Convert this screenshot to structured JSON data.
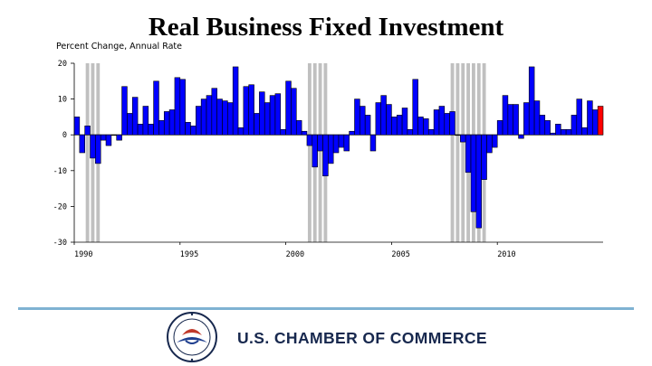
{
  "chart_data": {
    "type": "bar",
    "title": "Real Business Fixed Investment",
    "ylabel": "Percent Change, Annual Rate",
    "ylim": [
      -30,
      20
    ],
    "yticks": [
      "20",
      "10",
      "0",
      "-10",
      "-20",
      "-30"
    ],
    "xtick_labels": [
      "1990",
      "1995",
      "2000",
      "2005",
      "2010"
    ],
    "start": "1990 Q1",
    "frequency": "quarterly",
    "values": [
      5,
      -5,
      2.5,
      -6.5,
      -8,
      -1.5,
      -3,
      0,
      -1.5,
      13.5,
      6,
      10.5,
      3,
      8,
      3,
      15,
      4,
      6.5,
      7,
      16,
      15.5,
      3.5,
      2.5,
      8,
      10,
      11,
      13,
      10,
      9.5,
      9,
      19,
      2,
      13.5,
      14,
      6,
      12,
      9,
      11,
      11.5,
      1.5,
      15,
      13,
      4,
      1,
      -3,
      -9,
      -4.5,
      -11.5,
      -8,
      -5,
      -3.5,
      -4.5,
      1,
      10,
      8,
      5.5,
      -4.5,
      9,
      11,
      8.5,
      5,
      5.5,
      7.5,
      1.5,
      15.5,
      5,
      4.5,
      1.5,
      7,
      8,
      6,
      6.5,
      0,
      -2,
      -10.5,
      -21.5,
      -26,
      -12.5,
      -5,
      -3.5,
      4,
      11,
      8.5,
      8.5,
      -1,
      9,
      19,
      9.5,
      5.5,
      4,
      0.5,
      3,
      1.5,
      1.5,
      5.5,
      10,
      2,
      9.5,
      7,
      8
    ],
    "recessions": [
      {
        "start": "1990 Q3",
        "end": "1991 Q1"
      },
      {
        "start": "2001 Q1",
        "end": "2001 Q4"
      },
      {
        "start": "2007 Q4",
        "end": "2009 Q2"
      }
    ],
    "highlight_last": true,
    "colors": {
      "bar": "#0000ff",
      "last_bar": "#ff0000",
      "recession": "#c0c0c0",
      "edge": "#000000"
    }
  },
  "footer": {
    "brand": "U.S. CHAMBER OF COMMERCE",
    "seal_icon": "chamber-seal-icon"
  }
}
